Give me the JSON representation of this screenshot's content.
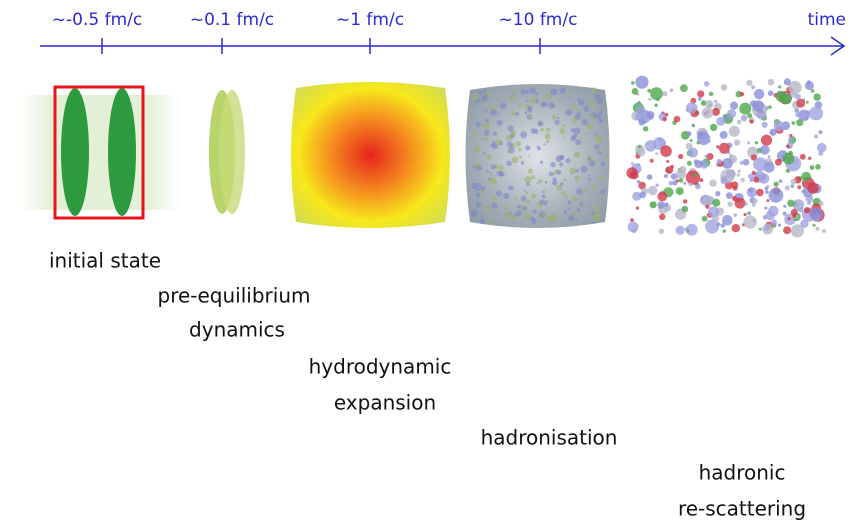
{
  "timeline": {
    "ticks": [
      "~-0.5 fm/c",
      "~0.1 fm/c",
      "~1 fm/c",
      "~10 fm/c"
    ],
    "end_label": "time"
  },
  "stages": [
    {
      "lines": [
        "initial state"
      ]
    },
    {
      "lines": [
        "pre-equilibrium",
        "dynamics"
      ]
    },
    {
      "lines": [
        "hydrodynamic",
        "expansion"
      ]
    },
    {
      "lines": [
        "hadronisation"
      ]
    },
    {
      "lines": [
        "hadronic",
        "re-scattering"
      ]
    }
  ]
}
